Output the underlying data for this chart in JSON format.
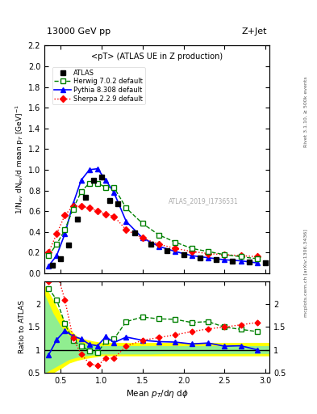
{
  "title_top": "13000 GeV pp",
  "title_right": "Z+Jet",
  "subtitle": "<pT> (ATLAS UE in Z production)",
  "watermark": "ATLAS_2019_I1736531",
  "ylabel_main": "1/N$_{ev}$ dN$_{ev}$/d mean p$_{T}$ [GeV]$^{-1}$",
  "ylabel_ratio": "Ratio to ATLAS",
  "xlabel": "Mean $p_{T}$/d$\\eta$ d$\\phi$",
  "right_label1": "Rivet 3.1.10, ≥ 500k events",
  "right_label2": "mcplots.cern.ch [arXiv:1306.3436]",
  "ylim_main": [
    0,
    2.2
  ],
  "ylim_ratio": [
    0.5,
    2.5
  ],
  "xlim": [
    0.3,
    3.05
  ],
  "atlas_x": [
    0.4,
    0.5,
    0.6,
    0.7,
    0.8,
    0.9,
    1.0,
    1.1,
    1.2,
    1.4,
    1.6,
    1.8,
    2.0,
    2.2,
    2.4,
    2.6,
    2.8,
    3.0
  ],
  "atlas_y": [
    0.08,
    0.14,
    0.27,
    0.52,
    0.73,
    0.9,
    0.93,
    0.7,
    0.67,
    0.39,
    0.28,
    0.22,
    0.18,
    0.15,
    0.13,
    0.12,
    0.11,
    0.1
  ],
  "herwig_x": [
    0.35,
    0.45,
    0.55,
    0.65,
    0.75,
    0.85,
    0.95,
    1.05,
    1.15,
    1.3,
    1.5,
    1.7,
    1.9,
    2.1,
    2.3,
    2.5,
    2.7,
    2.9
  ],
  "herwig_y": [
    0.17,
    0.28,
    0.42,
    0.62,
    0.79,
    0.87,
    0.87,
    0.83,
    0.83,
    0.63,
    0.48,
    0.37,
    0.3,
    0.24,
    0.21,
    0.18,
    0.16,
    0.14
  ],
  "pythia_x": [
    0.35,
    0.45,
    0.55,
    0.65,
    0.75,
    0.85,
    0.95,
    1.05,
    1.15,
    1.3,
    1.5,
    1.7,
    1.9,
    2.1,
    2.3,
    2.5,
    2.7,
    2.9
  ],
  "pythia_y": [
    0.07,
    0.17,
    0.38,
    0.67,
    0.9,
    1.0,
    1.01,
    0.9,
    0.78,
    0.5,
    0.34,
    0.26,
    0.21,
    0.17,
    0.15,
    0.13,
    0.12,
    0.1
  ],
  "sherpa_x": [
    0.35,
    0.45,
    0.55,
    0.65,
    0.75,
    0.85,
    0.95,
    1.05,
    1.15,
    1.3,
    1.5,
    1.7,
    1.9,
    2.1,
    2.3,
    2.5,
    2.7,
    2.9
  ],
  "sherpa_y": [
    0.2,
    0.38,
    0.56,
    0.65,
    0.65,
    0.63,
    0.6,
    0.57,
    0.55,
    0.42,
    0.34,
    0.28,
    0.24,
    0.21,
    0.19,
    0.18,
    0.17,
    0.16
  ],
  "herwig_ratio": [
    2.35,
    2.1,
    1.58,
    1.2,
    1.09,
    0.97,
    0.94,
    1.19,
    1.24,
    1.62,
    1.72,
    1.68,
    1.67,
    1.6,
    1.62,
    1.5,
    1.45,
    1.4
  ],
  "pythia_ratio": [
    0.88,
    1.22,
    1.42,
    1.3,
    1.24,
    1.12,
    1.09,
    1.29,
    1.16,
    1.28,
    1.21,
    1.18,
    1.17,
    1.13,
    1.15,
    1.08,
    1.09,
    1.0
  ],
  "sherpa_ratio": [
    2.5,
    2.72,
    2.1,
    1.26,
    0.9,
    0.7,
    0.65,
    0.82,
    0.82,
    1.08,
    1.21,
    1.27,
    1.33,
    1.4,
    1.46,
    1.5,
    1.55,
    1.6
  ],
  "band_x": [
    0.3,
    0.4,
    0.5,
    0.6,
    0.7,
    0.8,
    0.9,
    1.0,
    1.1,
    1.2,
    1.4,
    1.6,
    1.8,
    2.0,
    2.2,
    2.4,
    2.6,
    2.8,
    3.05
  ],
  "band_inner_low": [
    0.5,
    0.6,
    0.7,
    0.8,
    0.85,
    0.88,
    0.9,
    0.92,
    0.92,
    0.92,
    0.92,
    0.92,
    0.93,
    0.93,
    0.93,
    0.93,
    0.93,
    0.93,
    0.93
  ],
  "band_inner_high": [
    2.2,
    1.8,
    1.5,
    1.3,
    1.18,
    1.12,
    1.1,
    1.08,
    1.08,
    1.08,
    1.08,
    1.08,
    1.08,
    1.08,
    1.08,
    1.08,
    1.08,
    1.08,
    1.08
  ],
  "band_outer_low": [
    0.4,
    0.5,
    0.6,
    0.72,
    0.78,
    0.82,
    0.85,
    0.88,
    0.88,
    0.88,
    0.88,
    0.88,
    0.88,
    0.88,
    0.88,
    0.88,
    0.88,
    0.88,
    0.88
  ],
  "band_outer_high": [
    2.4,
    2.1,
    1.75,
    1.45,
    1.28,
    1.22,
    1.18,
    1.15,
    1.15,
    1.15,
    1.15,
    1.15,
    1.15,
    1.15,
    1.15,
    1.15,
    1.15,
    1.15,
    1.15
  ]
}
